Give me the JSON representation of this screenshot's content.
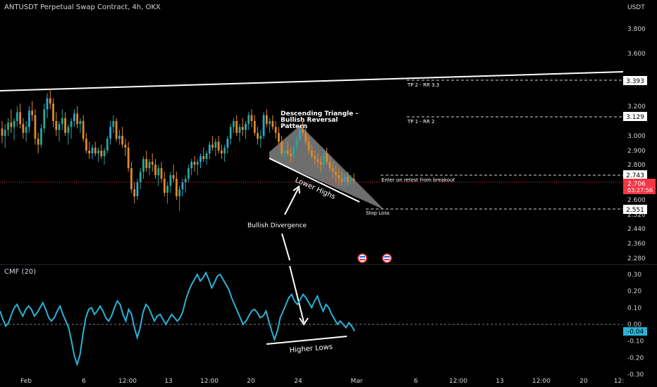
{
  "header": {
    "symbol_line": "ANTUSDT Perpetual Swap Contract, 4h, OKX",
    "currency": "USDT"
  },
  "indicator": {
    "title": "CMF (20)"
  },
  "colors": {
    "up": "#26a69a",
    "up_alt": "#2aa9d6",
    "down": "#e0892b",
    "cmf_line": "#2ab3d6",
    "current_price": "#f23645",
    "cmf_badge": "#2ab3d6",
    "trendline": "#ffffff"
  },
  "chart_data": [
    {
      "type": "candlestick",
      "title": "ANTUSDT Perpetual Swap Contract, 4h, OKX",
      "y_axis_ticks": [
        "3.800",
        "3.600",
        "3.200",
        "3.000",
        "2.900",
        "2.800",
        "2.600",
        "2.520",
        "2.440",
        "2.360",
        "2.280"
      ],
      "y_axis_values": [
        3.8,
        3.6,
        3.2,
        3.0,
        2.9,
        2.8,
        2.6,
        2.52,
        2.44,
        2.36,
        2.28
      ],
      "x_axis_ticks": [
        "Feb",
        "6",
        "12:00",
        "13",
        "12:00",
        "20",
        "24",
        "Mar",
        "6",
        "12:00",
        "13",
        "12:00",
        "20",
        "12:"
      ],
      "price_labels": [
        {
          "value": "3.393",
          "text": "TP 2 - RR 3.3"
        },
        {
          "value": "3.129",
          "text": "TP 1 - RR 2"
        },
        {
          "value": "2.743",
          "text": "Enter on retest from breakout"
        },
        {
          "value": "2.551",
          "text": "Stop Loss"
        }
      ],
      "current_price": {
        "value": "2.706",
        "countdown": "03:27:56"
      },
      "annotations": [
        "Descending Triangle -",
        "Bullish Reversal",
        "Pattern",
        "Lower Highs",
        "Bullish Divergence"
      ],
      "candles": [
        [
          3.05,
          3.1,
          2.95,
          3.0
        ],
        [
          3.0,
          3.08,
          2.92,
          3.04
        ],
        [
          3.04,
          3.12,
          3.0,
          3.09
        ],
        [
          3.09,
          3.18,
          3.02,
          3.06
        ],
        [
          3.06,
          3.12,
          2.97,
          3.1
        ],
        [
          3.1,
          3.2,
          3.06,
          3.16
        ],
        [
          3.16,
          3.22,
          3.05,
          3.08
        ],
        [
          3.08,
          3.12,
          2.98,
          3.02
        ],
        [
          3.02,
          3.1,
          2.96,
          3.06
        ],
        [
          3.06,
          3.2,
          3.02,
          3.17
        ],
        [
          3.17,
          3.24,
          3.1,
          3.14
        ],
        [
          3.14,
          3.18,
          2.94,
          2.98
        ],
        [
          2.98,
          3.02,
          2.88,
          2.94
        ],
        [
          2.94,
          3.08,
          2.92,
          3.05
        ],
        [
          3.05,
          3.22,
          3.02,
          3.18
        ],
        [
          3.18,
          3.3,
          3.12,
          3.26
        ],
        [
          3.26,
          3.33,
          3.18,
          3.22
        ],
        [
          3.22,
          3.26,
          3.06,
          3.1
        ],
        [
          3.1,
          3.16,
          3.0,
          3.04
        ],
        [
          3.04,
          3.1,
          2.96,
          3.08
        ],
        [
          3.08,
          3.18,
          3.04,
          3.12
        ],
        [
          3.12,
          3.16,
          3.0,
          3.02
        ],
        [
          3.02,
          3.08,
          2.94,
          3.06
        ],
        [
          3.06,
          3.12,
          2.98,
          3.1
        ],
        [
          3.1,
          3.18,
          3.06,
          3.15
        ],
        [
          3.15,
          3.2,
          3.05,
          3.08
        ],
        [
          3.08,
          3.12,
          3.02,
          3.1
        ],
        [
          3.1,
          3.14,
          2.96,
          2.98
        ],
        [
          2.98,
          3.02,
          2.88,
          2.9
        ],
        [
          2.9,
          2.96,
          2.84,
          2.88
        ],
        [
          2.88,
          2.94,
          2.84,
          2.92
        ],
        [
          2.92,
          2.96,
          2.86,
          2.88
        ],
        [
          2.88,
          2.92,
          2.82,
          2.9
        ],
        [
          2.9,
          2.94,
          2.84,
          2.86
        ],
        [
          2.86,
          2.92,
          2.8,
          2.9
        ],
        [
          2.9,
          3.0,
          2.88,
          2.98
        ],
        [
          2.98,
          3.1,
          2.94,
          3.06
        ],
        [
          3.06,
          3.14,
          3.02,
          3.1
        ],
        [
          3.1,
          3.12,
          2.96,
          2.98
        ],
        [
          2.98,
          3.04,
          2.94,
          3.0
        ],
        [
          3.0,
          3.06,
          2.92,
          2.94
        ],
        [
          2.94,
          2.98,
          2.86,
          2.92
        ],
        [
          2.92,
          2.96,
          2.76,
          2.78
        ],
        [
          2.78,
          2.82,
          2.64,
          2.66
        ],
        [
          2.66,
          2.7,
          2.58,
          2.62
        ],
        [
          2.62,
          2.72,
          2.6,
          2.7
        ],
        [
          2.7,
          2.78,
          2.66,
          2.76
        ],
        [
          2.76,
          2.86,
          2.72,
          2.84
        ],
        [
          2.84,
          2.9,
          2.76,
          2.78
        ],
        [
          2.78,
          2.84,
          2.74,
          2.82
        ],
        [
          2.82,
          2.88,
          2.76,
          2.8
        ],
        [
          2.8,
          2.84,
          2.72,
          2.74
        ],
        [
          2.74,
          2.8,
          2.68,
          2.78
        ],
        [
          2.78,
          2.82,
          2.7,
          2.72
        ],
        [
          2.72,
          2.76,
          2.62,
          2.64
        ],
        [
          2.64,
          2.7,
          2.58,
          2.68
        ],
        [
          2.68,
          2.76,
          2.64,
          2.74
        ],
        [
          2.74,
          2.8,
          2.7,
          2.72
        ],
        [
          2.72,
          2.76,
          2.6,
          2.62
        ],
        [
          2.62,
          2.68,
          2.54,
          2.66
        ],
        [
          2.66,
          2.72,
          2.62,
          2.7
        ],
        [
          2.7,
          2.74,
          2.64,
          2.72
        ],
        [
          2.72,
          2.8,
          2.7,
          2.78
        ],
        [
          2.78,
          2.84,
          2.74,
          2.82
        ],
        [
          2.82,
          2.86,
          2.76,
          2.8
        ],
        [
          2.8,
          2.84,
          2.74,
          2.82
        ],
        [
          2.82,
          2.88,
          2.78,
          2.86
        ],
        [
          2.86,
          2.92,
          2.82,
          2.84
        ],
        [
          2.84,
          2.9,
          2.8,
          2.88
        ],
        [
          2.88,
          2.96,
          2.84,
          2.94
        ],
        [
          2.94,
          3.0,
          2.9,
          2.92
        ],
        [
          2.92,
          2.98,
          2.86,
          2.96
        ],
        [
          2.96,
          3.0,
          2.88,
          2.9
        ],
        [
          2.9,
          2.94,
          2.84,
          2.88
        ],
        [
          2.88,
          2.94,
          2.82,
          2.92
        ],
        [
          2.92,
          3.0,
          2.88,
          2.98
        ],
        [
          2.98,
          3.08,
          2.94,
          3.06
        ],
        [
          3.06,
          3.12,
          3.02,
          3.1
        ],
        [
          3.1,
          3.14,
          3.0,
          3.02
        ],
        [
          3.02,
          3.08,
          2.96,
          3.06
        ],
        [
          3.06,
          3.12,
          3.0,
          3.04
        ],
        [
          3.04,
          3.1,
          2.98,
          3.08
        ],
        [
          3.08,
          3.16,
          3.04,
          3.14
        ],
        [
          3.14,
          3.18,
          3.06,
          3.1
        ],
        [
          3.1,
          3.14,
          3.0,
          3.02
        ],
        [
          3.02,
          3.06,
          2.94,
          2.98
        ],
        [
          2.98,
          3.04,
          2.92,
          3.0
        ],
        [
          3.0,
          3.16,
          2.98,
          3.14
        ],
        [
          3.14,
          3.18,
          3.06,
          3.08
        ],
        [
          3.08,
          3.12,
          3.02,
          3.1
        ],
        [
          3.1,
          3.14,
          3.04,
          3.06
        ],
        [
          3.06,
          3.1,
          2.98,
          3.02
        ],
        [
          3.02,
          3.06,
          2.94,
          2.96
        ],
        [
          2.96,
          3.0,
          2.86,
          2.88
        ],
        [
          2.88,
          2.92,
          2.84,
          2.9
        ],
        [
          2.9,
          2.96,
          2.86,
          2.88
        ],
        [
          2.88,
          2.92,
          2.82,
          2.86
        ],
        [
          2.86,
          2.94,
          2.84,
          2.92
        ],
        [
          2.92,
          3.0,
          2.9,
          2.98
        ],
        [
          2.98,
          3.06,
          2.96,
          3.04
        ],
        [
          3.04,
          3.1,
          3.0,
          3.02
        ],
        [
          3.02,
          3.06,
          2.94,
          2.96
        ],
        [
          2.96,
          3.0,
          2.88,
          2.9
        ],
        [
          2.9,
          2.94,
          2.84,
          2.86
        ],
        [
          2.86,
          2.9,
          2.8,
          2.84
        ],
        [
          2.84,
          2.88,
          2.78,
          2.82
        ],
        [
          2.82,
          2.86,
          2.76,
          2.8
        ],
        [
          2.8,
          2.9,
          2.78,
          2.88
        ],
        [
          2.88,
          2.92,
          2.8,
          2.82
        ],
        [
          2.82,
          2.86,
          2.76,
          2.78
        ],
        [
          2.78,
          2.82,
          2.72,
          2.76
        ],
        [
          2.76,
          2.8,
          2.7,
          2.74
        ],
        [
          2.74,
          2.78,
          2.68,
          2.72
        ],
        [
          2.72,
          2.76,
          2.68,
          2.7
        ],
        [
          2.7,
          2.75,
          2.67,
          2.73
        ],
        [
          2.73,
          2.76,
          2.68,
          2.7
        ],
        [
          2.7,
          2.74,
          2.68,
          2.72
        ],
        [
          2.72,
          2.75,
          2.69,
          2.71
        ]
      ]
    },
    {
      "type": "line",
      "title": "CMF (20)",
      "y_axis_ticks": [
        "0.30",
        "0.20",
        "0.10",
        "0.00",
        "-0.10",
        "-0.20",
        "-0.30"
      ],
      "y_axis_values": [
        0.3,
        0.2,
        0.1,
        0.0,
        -0.1,
        -0.2,
        -0.3
      ],
      "last_value": "-0.04",
      "annotations": [
        "Higher Lows"
      ],
      "values": [
        0.08,
        0.03,
        -0.01,
        0.01,
        0.06,
        0.1,
        0.12,
        0.08,
        0.05,
        0.09,
        0.11,
        0.09,
        0.05,
        0.07,
        0.1,
        0.13,
        0.09,
        0.04,
        0.02,
        0.04,
        0.08,
        0.11,
        0.06,
        0.02,
        -0.02,
        -0.1,
        -0.19,
        -0.24,
        -0.18,
        -0.06,
        0.04,
        0.09,
        0.1,
        0.06,
        0.08,
        0.11,
        0.08,
        0.04,
        0.02,
        0.05,
        0.1,
        0.14,
        0.12,
        0.06,
        0.02,
        0.09,
        0.06,
        -0.02,
        -0.08,
        -0.02,
        0.07,
        0.12,
        0.1,
        0.06,
        0.02,
        0.05,
        0.06,
        0.03,
        0.0,
        0.03,
        0.06,
        0.04,
        0.02,
        0.04,
        0.08,
        0.15,
        0.2,
        0.24,
        0.27,
        0.3,
        0.26,
        0.28,
        0.31,
        0.27,
        0.22,
        0.25,
        0.29,
        0.3,
        0.27,
        0.24,
        0.21,
        0.16,
        0.12,
        0.08,
        0.04,
        0.0,
        0.02,
        0.05,
        0.08,
        0.09,
        0.07,
        0.04,
        0.05,
        0.08,
        0.02,
        -0.04,
        -0.09,
        -0.04,
        0.04,
        0.08,
        0.12,
        0.16,
        0.18,
        0.14,
        0.12,
        0.15,
        0.18,
        0.16,
        0.13,
        0.1,
        0.14,
        0.17,
        0.12,
        0.08,
        0.12,
        0.1,
        0.06,
        0.03,
        0.0,
        0.02,
        0.0,
        -0.02,
        0.01,
        -0.01,
        -0.04
      ]
    }
  ]
}
